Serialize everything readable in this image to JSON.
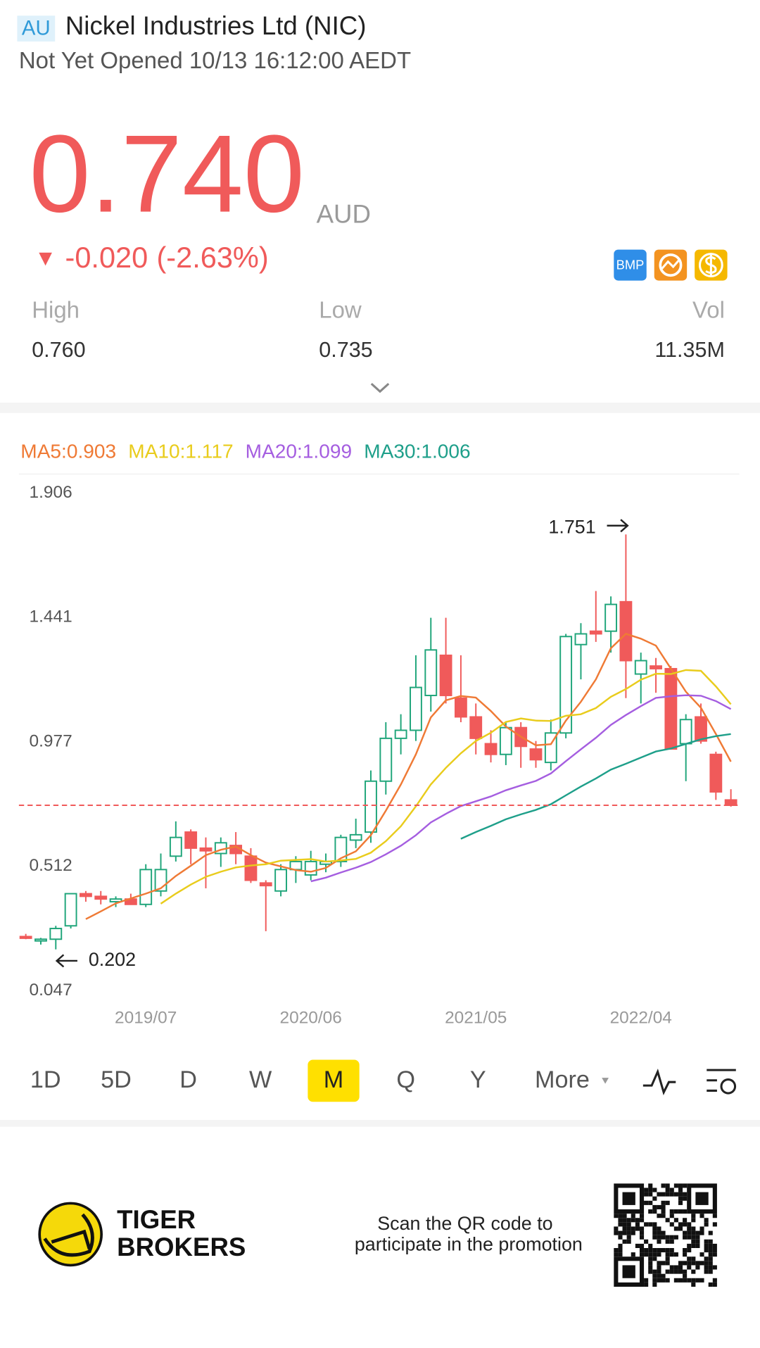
{
  "header": {
    "market": "AU",
    "name": "Nickel Industries Ltd (NIC)",
    "status": "Not Yet Opened 10/13 16:12:00 AEDT"
  },
  "quote": {
    "price": "0.740",
    "currency": "AUD",
    "direction": "▼",
    "change": "-0.020",
    "change_pct": "(-2.63%)",
    "badge": "BMP"
  },
  "stats": [
    {
      "label": "High",
      "value": "0.760"
    },
    {
      "label": "Low",
      "value": "0.735"
    },
    {
      "label": "Vol",
      "value": "11.35M"
    }
  ],
  "chart_data": {
    "type": "candlestick",
    "categories": [
      null,
      null,
      null,
      null,
      null,
      null,
      null,
      null,
      "2019/07",
      null,
      null,
      null,
      null,
      null,
      null,
      null,
      null,
      null,
      null,
      "2020/06",
      null,
      null,
      null,
      null,
      null,
      null,
      null,
      null,
      null,
      null,
      "2021/05",
      null,
      null,
      null,
      null,
      null,
      null,
      null,
      null,
      null,
      null,
      "2022/04",
      null,
      null,
      null,
      null,
      null,
      null
    ],
    "open": [
      0.25,
      0.235,
      0.24,
      0.29,
      0.41,
      0.4,
      0.38,
      0.39,
      0.37,
      0.42,
      0.55,
      0.64,
      0.58,
      0.56,
      0.59,
      0.55,
      0.45,
      0.42,
      0.5,
      0.48,
      0.52,
      0.53,
      0.61,
      0.64,
      0.83,
      0.99,
      1.02,
      1.15,
      1.3,
      1.14,
      1.07,
      0.97,
      0.93,
      1.03,
      0.95,
      0.9,
      1.01,
      1.34,
      1.39,
      1.39,
      1.5,
      1.23,
      1.26,
      1.25,
      0.97,
      1.07,
      0.93,
      0.76
    ],
    "high": [
      0.26,
      0.245,
      0.29,
      0.41,
      0.42,
      0.42,
      0.4,
      0.41,
      0.52,
      0.56,
      0.68,
      0.65,
      0.62,
      0.62,
      0.64,
      0.58,
      0.46,
      0.52,
      0.55,
      0.57,
      0.56,
      0.63,
      0.69,
      0.87,
      1.05,
      1.08,
      1.3,
      1.44,
      1.44,
      1.3,
      1.12,
      1.02,
      1.05,
      1.05,
      0.98,
      1.06,
      1.38,
      1.42,
      1.54,
      1.52,
      1.751,
      1.31,
      1.29,
      1.26,
      1.08,
      1.12,
      0.94,
      0.8
    ],
    "low": [
      0.24,
      0.22,
      0.202,
      0.28,
      0.38,
      0.37,
      0.36,
      0.37,
      0.36,
      0.4,
      0.53,
      0.52,
      0.43,
      0.51,
      0.52,
      0.45,
      0.27,
      0.4,
      0.45,
      0.46,
      0.49,
      0.51,
      0.58,
      0.6,
      0.78,
      0.93,
      0.98,
      1.09,
      1.12,
      1.05,
      0.93,
      0.9,
      0.89,
      0.88,
      0.88,
      0.87,
      0.99,
      1.21,
      1.35,
      1.31,
      1.14,
      1.12,
      1.16,
      0.95,
      0.83,
      0.97,
      0.76,
      0.735
    ],
    "close": [
      0.245,
      0.24,
      0.28,
      0.41,
      0.4,
      0.39,
      0.39,
      0.37,
      0.5,
      0.5,
      0.62,
      0.58,
      0.57,
      0.6,
      0.56,
      0.46,
      0.44,
      0.5,
      0.53,
      0.53,
      0.53,
      0.62,
      0.63,
      0.83,
      0.99,
      1.02,
      1.18,
      1.32,
      1.15,
      1.07,
      0.99,
      0.93,
      1.03,
      0.96,
      0.91,
      1.01,
      1.37,
      1.38,
      1.38,
      1.49,
      1.28,
      1.28,
      1.25,
      0.95,
      1.06,
      0.98,
      0.79,
      0.74
    ],
    "up_color": "#1fa57a",
    "down_color": "#f05a5a",
    "series": [
      {
        "name": "MA5:0.903",
        "color": "#ef7a35",
        "values": [
          null,
          null,
          null,
          null,
          0.315,
          0.344,
          0.374,
          0.392,
          0.41,
          0.43,
          0.476,
          0.514,
          0.554,
          0.574,
          0.586,
          0.554,
          0.526,
          0.512,
          0.498,
          0.492,
          0.506,
          0.542,
          0.568,
          0.628,
          0.72,
          0.818,
          0.93,
          1.068,
          1.132,
          1.148,
          1.142,
          1.092,
          1.034,
          0.996,
          0.964,
          0.968,
          1.056,
          1.126,
          1.21,
          1.326,
          1.38,
          1.362,
          1.336,
          1.25,
          1.164,
          1.104,
          1.006,
          0.903
        ]
      },
      {
        "name": "MA10:1.117",
        "color": "#e9cc1c",
        "values": [
          null,
          null,
          null,
          null,
          null,
          null,
          null,
          null,
          null,
          0.3725,
          0.41,
          0.444,
          0.473,
          0.492,
          0.508,
          0.515,
          0.52,
          0.533,
          0.536,
          0.539,
          0.53,
          0.534,
          0.54,
          0.563,
          0.606,
          0.662,
          0.736,
          0.818,
          0.88,
          0.934,
          0.98,
          1.011,
          1.051,
          1.064,
          1.056,
          1.055,
          1.074,
          1.08,
          1.103,
          1.145,
          1.174,
          1.209,
          1.231,
          1.23,
          1.245,
          1.242,
          1.184,
          1.117
        ]
      },
      {
        "name": "MA20:1.099",
        "color": "#a55ee0",
        "values": [
          null,
          null,
          null,
          null,
          null,
          null,
          null,
          null,
          null,
          null,
          null,
          null,
          null,
          null,
          null,
          null,
          null,
          null,
          null,
          0.456,
          0.47,
          0.489,
          0.507,
          0.528,
          0.557,
          0.589,
          0.628,
          0.676,
          0.708,
          0.737,
          0.755,
          0.773,
          0.796,
          0.814,
          0.831,
          0.859,
          0.905,
          0.949,
          0.992,
          1.04,
          1.077,
          1.11,
          1.141,
          1.147,
          1.151,
          1.149,
          1.129,
          1.099
        ]
      },
      {
        "name": "MA30:1.006",
        "color": "#1e9f8a",
        "values": [
          null,
          null,
          null,
          null,
          null,
          null,
          null,
          null,
          null,
          null,
          null,
          null,
          null,
          null,
          null,
          null,
          null,
          null,
          null,
          null,
          null,
          null,
          null,
          null,
          null,
          null,
          null,
          null,
          null,
          0.615,
          0.64,
          0.663,
          0.688,
          0.706,
          0.723,
          0.744,
          0.777,
          0.81,
          0.84,
          0.873,
          0.895,
          0.918,
          0.941,
          0.952,
          0.969,
          0.986,
          0.998,
          1.006
        ]
      }
    ],
    "ylim": [
      0.047,
      1.906
    ],
    "yticks": [
      1.906,
      1.441,
      0.977,
      0.512,
      0.047
    ],
    "grid": false,
    "high_marker": 1.751,
    "low_marker": 0.202,
    "price_line": 0.74,
    "price_line_color": "#f05a5a"
  },
  "periods": {
    "items": [
      "1D",
      "5D",
      "D",
      "W",
      "M",
      "Q",
      "Y",
      "More"
    ],
    "selected": 4
  },
  "footer": {
    "brand": [
      "TIGER",
      "BROKERS"
    ],
    "promo": [
      "Scan the QR code to",
      "participate in the promotion"
    ]
  }
}
